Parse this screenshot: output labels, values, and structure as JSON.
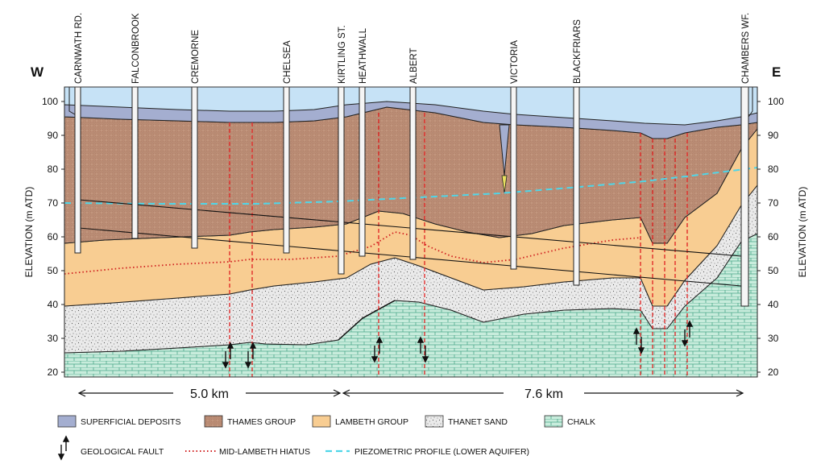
{
  "directions": {
    "west": "W",
    "east": "E"
  },
  "axes": {
    "left_title": "ELEVATION (m ATD)",
    "right_title": "ELEVATION (m ATD)",
    "ticks": [
      "100",
      "90",
      "80",
      "70",
      "60",
      "50",
      "40",
      "30",
      "20"
    ]
  },
  "boreholes": [
    {
      "name": "CARNWATH RD."
    },
    {
      "name": "FALCONBROOK"
    },
    {
      "name": "CREMORNE"
    },
    {
      "name": "CHELSEA"
    },
    {
      "name": "KIRTLING ST."
    },
    {
      "name": "HEATHWALL"
    },
    {
      "name": "ALBERT"
    },
    {
      "name": "VICTORIA"
    },
    {
      "name": "BLACKFRIARS"
    },
    {
      "name": "CHAMBERS WF."
    }
  ],
  "distances": [
    {
      "label": "5.0 km"
    },
    {
      "label": "7.6 km"
    }
  ],
  "legend": {
    "superficial": "SUPERFICIAL DEPOSITS",
    "thames": "THAMES GROUP",
    "lambeth": "LAMBETH GROUP",
    "thanet": "THANET SAND",
    "chalk": "CHALK",
    "fault": "GEOLOGICAL FAULT",
    "hiatus": "MID-LAMBETH HIATUS",
    "piezo": "PIEZOMETRIC PROFILE (LOWER AQUIFER)"
  },
  "colors": {
    "water": "#c6e2f6",
    "superficial": "#a4aed0",
    "thames": "#c69a82",
    "lambeth": "#f8cd92",
    "thanet": "#e8e8e8",
    "chalk": "#c7ecdc",
    "fault": "#e02020",
    "hiatus": "#d02020",
    "piezo": "#4fd6e8"
  }
}
